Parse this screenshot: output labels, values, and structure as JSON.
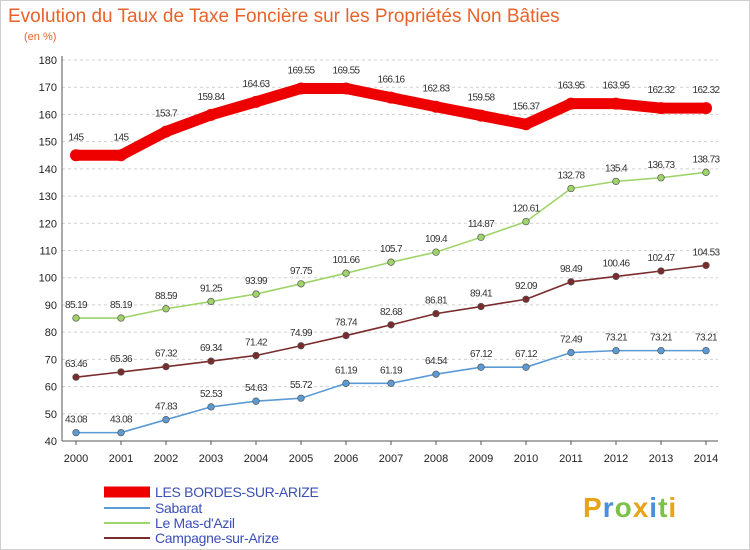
{
  "chart_data": {
    "type": "line",
    "title": "Evolution du Taux de Taxe Foncière sur les Propriétés Non Bâties",
    "subtitle": "(en %)",
    "xlabel": "",
    "ylabel": "",
    "x": [
      "2000",
      "2001",
      "2002",
      "2003",
      "2004",
      "2005",
      "2006",
      "2007",
      "2008",
      "2009",
      "2010",
      "2011",
      "2012",
      "2013",
      "2014"
    ],
    "ylim": [
      40,
      180
    ],
    "yticks": [
      "40",
      "50",
      "60",
      "70",
      "80",
      "90",
      "100",
      "110",
      "120",
      "130",
      "140",
      "150",
      "160",
      "170",
      "180"
    ],
    "grid": "horizontal dashed",
    "legend_position": "bottom-left",
    "series": [
      {
        "name": "LES BORDES-SUR-ARIZE",
        "color": "#ee0000",
        "values": [
          145,
          145,
          153.7,
          159.84,
          164.63,
          169.55,
          169.55,
          166.16,
          162.83,
          159.58,
          156.37,
          163.95,
          163.95,
          162.32,
          162.32
        ],
        "labels": [
          "145",
          "145",
          "153.7",
          "159.84",
          "164.63",
          "169.55",
          "169.55",
          "166.16",
          "162.83",
          "159.58",
          "156.37",
          "163.95",
          "163.95",
          "162.32",
          "162.32"
        ]
      },
      {
        "name": "Sabarat",
        "color": "#5b9bd5",
        "values": [
          43.08,
          43.08,
          47.83,
          52.53,
          54.63,
          55.72,
          61.19,
          61.19,
          64.54,
          67.12,
          67.12,
          72.49,
          73.21,
          73.21,
          73.21
        ],
        "labels": [
          "43.08",
          "43.08",
          "47.83",
          "52.53",
          "54.63",
          "55.72",
          "61.19",
          "61.19",
          "64.54",
          "67.12",
          "67.12",
          "72.49",
          "73.21",
          "73.21",
          "73.21"
        ]
      },
      {
        "name": "Le Mas-d'Azil",
        "color": "#9fd46a",
        "values": [
          85.19,
          85.19,
          88.59,
          91.25,
          93.99,
          97.75,
          101.66,
          105.7,
          109.4,
          114.87,
          120.61,
          132.78,
          135.4,
          136.73,
          138.73
        ],
        "labels": [
          "85.19",
          "85.19",
          "88.59",
          "91.25",
          "93.99",
          "97.75",
          "101.66",
          "105.7",
          "109.4",
          "114.87",
          "120.61",
          "132.78",
          "135.4",
          "136.73",
          "138.73"
        ]
      },
      {
        "name": "Campagne-sur-Arize",
        "color": "#7a2c2c",
        "values": [
          63.46,
          65.36,
          67.32,
          69.34,
          71.42,
          74.99,
          78.74,
          82.68,
          86.81,
          89.41,
          92.09,
          98.49,
          100.46,
          102.47,
          104.53
        ],
        "labels": [
          "63.46",
          "65.36",
          "67.32",
          "69.34",
          "71.42",
          "74.99",
          "78.74",
          "82.68",
          "86.81",
          "89.41",
          "92.09",
          "98.49",
          "100.46",
          "102.47",
          "104.53"
        ]
      }
    ]
  },
  "logo": {
    "letters": [
      "P",
      "r",
      "o",
      "x",
      "i",
      "t",
      "i"
    ],
    "colors": [
      "#e8a317",
      "#4a90d9",
      "#7cc14a",
      "#e8a317",
      "#4a90d9",
      "#7cc14a",
      "#e8a317"
    ]
  }
}
